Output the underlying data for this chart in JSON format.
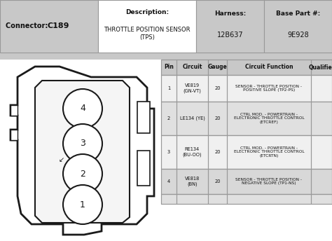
{
  "connector": "C189",
  "description_label": "Description:",
  "description_value": "THROTTLE POSITION SENSOR\n(TPS)",
  "harness_label": "Harness:",
  "harness_value": "12B637",
  "basepart_label": "Base Part #:",
  "basepart_value": "9E928",
  "table_headers": [
    "Pin",
    "Circuit",
    "Gauge",
    "Circuit Function",
    "Qualifier"
  ],
  "rows": [
    [
      "1",
      "VE819\n(GN-VT)",
      "20",
      "SENSOR - THROTTLE POSITION -\nPOSITIVE SLOPE (TP2-PS)",
      ""
    ],
    [
      "2",
      "LE134 (YE)",
      "20",
      "CTRL MOD. - POWERTRAIN -\nELECTRONIC THROTTLE CONTROL\n(ETCREF)",
      ""
    ],
    [
      "3",
      "RE134\n(BU-OO)",
      "20",
      "CTRL MOD. - POWERTRAIN -\nELECTRONIC THROTTLE CONTROL\n(ETCRTN)",
      ""
    ],
    [
      "4",
      "VE818\n(BN)",
      "20",
      "SENSOR - THROTTLE POSITION -\nNEGATIVE SLOPE (TP1-NS)",
      ""
    ]
  ],
  "bg_color": "#ffffff",
  "header_bg": "#c8c8c8",
  "row_bg1": "#f0f0f0",
  "row_bg2": "#e0e0e0",
  "row_bg4": "#d8d8d8",
  "border_color": "#999999",
  "text_color": "#111111"
}
